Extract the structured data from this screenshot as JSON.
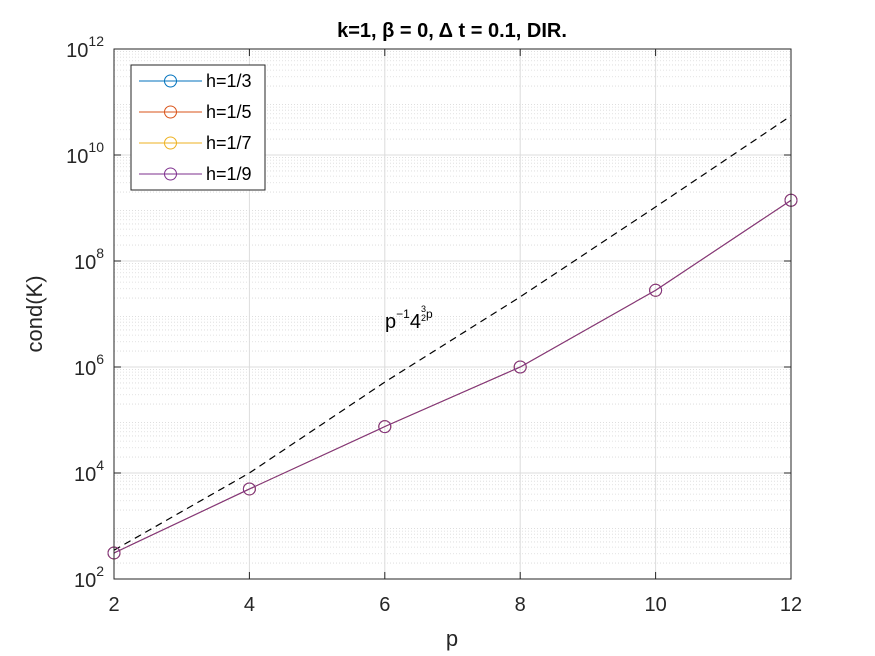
{
  "chart_data": {
    "type": "line",
    "title": "k=1, β = 0, Δ t = 0.1,  DIR.",
    "xlabel": "p",
    "ylabel": "cond(K)",
    "xlim": [
      2,
      12
    ],
    "ylim_log10": [
      2,
      12
    ],
    "yscale": "log",
    "grid": true,
    "legend_position": "top-left",
    "x": [
      2,
      4,
      6,
      8,
      10,
      12
    ],
    "x_ticks": [
      "2",
      "4",
      "6",
      "8",
      "10",
      "12"
    ],
    "y_ticks": [
      {
        "base": "10",
        "exp": "2"
      },
      {
        "base": "10",
        "exp": "4"
      },
      {
        "base": "10",
        "exp": "6"
      },
      {
        "base": "10",
        "exp": "8"
      },
      {
        "base": "10",
        "exp": "10"
      },
      {
        "base": "10",
        "exp": "12"
      }
    ],
    "series": [
      {
        "name": "h=1/3",
        "color": "#0072BD",
        "values": [
          310,
          5000,
          75000,
          1000000,
          28000000,
          1400000000
        ]
      },
      {
        "name": "h=1/5",
        "color": "#D95319",
        "values": [
          310,
          5000,
          75000,
          1000000,
          28000000,
          1400000000
        ]
      },
      {
        "name": "h=1/7",
        "color": "#EDB120",
        "values": [
          310,
          5000,
          75000,
          1000000,
          28000000,
          1400000000
        ]
      },
      {
        "name": "h=1/9",
        "color": "#7E2F8E",
        "values": [
          310,
          5000,
          75000,
          1000000,
          28000000,
          1400000000
        ]
      }
    ],
    "reference": {
      "style": "dashed",
      "color": "#000000",
      "values": [
        350,
        10000,
        520000,
        21000000,
        1050000000,
        55000000000
      ],
      "label": {
        "base": "p",
        "exp1": "−1",
        "mid": "4",
        "frac_num": "3",
        "frac_den": "2",
        "frac_after": "p"
      }
    }
  }
}
